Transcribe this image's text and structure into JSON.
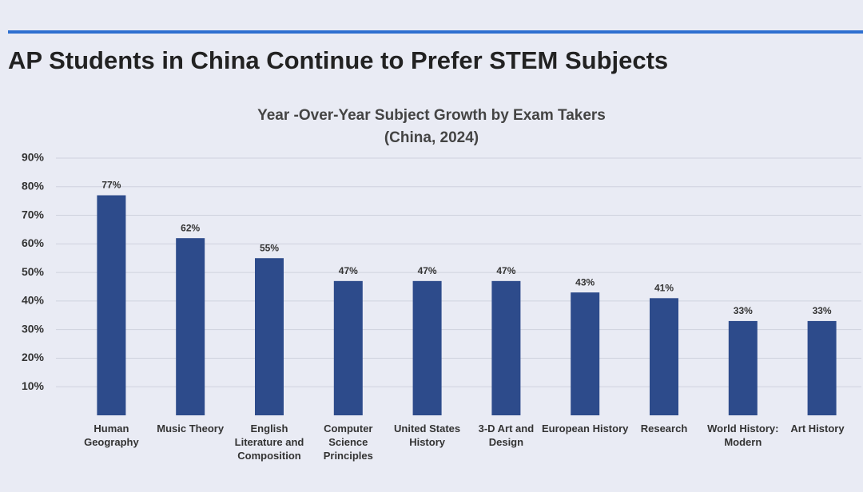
{
  "chart_data": {
    "type": "bar",
    "title": "AP Students in China Continue to Prefer STEM Subjects",
    "subtitle": "Year -Over-Year Subject Growth by Exam Takers",
    "note": "(China, 2024)",
    "categories": [
      "Human Geography",
      "Music Theory",
      "English Literature and Composition",
      "Computer Science Principles",
      "United States History",
      "3-D Art and Design",
      "European History",
      "Research",
      "World History: Modern",
      "Art History"
    ],
    "values": [
      77,
      62,
      55,
      47,
      47,
      47,
      43,
      41,
      33,
      33
    ],
    "value_labels": [
      "77%",
      "62%",
      "55%",
      "47%",
      "47%",
      "47%",
      "43%",
      "41%",
      "33%",
      "33%"
    ],
    "color": "#2d4b8b",
    "ylim": [
      0,
      90
    ],
    "yticks": [
      {
        "value": 10,
        "label": "10%"
      },
      {
        "value": 20,
        "label": "20%"
      },
      {
        "value": 30,
        "label": "30%"
      },
      {
        "value": 40,
        "label": "40%"
      },
      {
        "value": 50,
        "label": "50%"
      },
      {
        "value": 60,
        "label": "60%"
      },
      {
        "value": 70,
        "label": "70%"
      },
      {
        "value": 80,
        "label": "80%"
      },
      {
        "value": 90,
        "label": "90%"
      }
    ],
    "grid": true
  }
}
